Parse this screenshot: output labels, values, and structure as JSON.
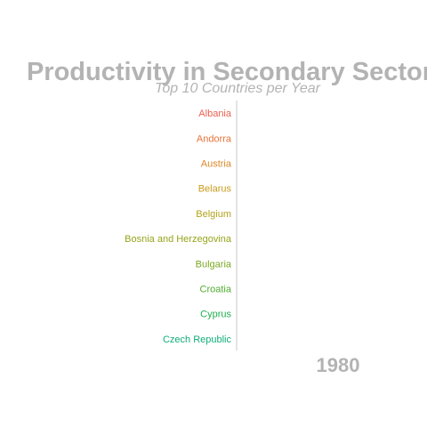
{
  "chart_data": {
    "type": "bar",
    "orientation": "horizontal",
    "title": "Productivity in Secondary Sector",
    "subtitle": "Top 10 Countries per Year",
    "year": "1980",
    "categories": [
      "Albania",
      "Andorra",
      "Austria",
      "Belarus",
      "Belgium",
      "Bosnia and Herzegovina",
      "Bulgaria",
      "Croatia",
      "Cyprus",
      "Czech Republic"
    ],
    "category_colors": [
      "#ee5f4f",
      "#e7733a",
      "#db8726",
      "#c99b1c",
      "#b2a31a",
      "#97a41b",
      "#7aa823",
      "#4fae2f",
      "#21ae4e",
      "#12ae79"
    ],
    "values": [
      0,
      0,
      0,
      0,
      0,
      0,
      0,
      0,
      0,
      0
    ],
    "grid": false,
    "legend": "none"
  }
}
